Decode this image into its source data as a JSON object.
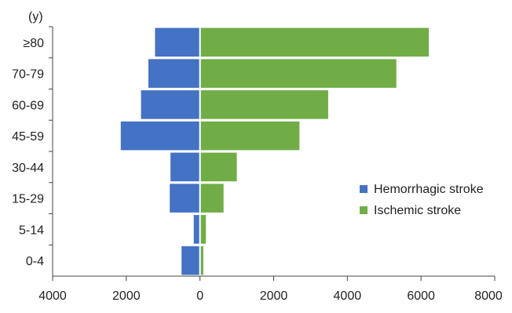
{
  "chart_data": {
    "type": "bar",
    "orientation": "horizontal",
    "layout": "population-pyramid",
    "y_axis_unit": "(y)",
    "categories": [
      "0-4",
      "5-14",
      "15-29",
      "30-44",
      "45-59",
      "60-69",
      "70-79",
      "≥80"
    ],
    "series": [
      {
        "name": "Hemorrhagic stroke",
        "color": "#4472C4",
        "side": "left",
        "values": [
          500,
          170,
          820,
          800,
          2150,
          1600,
          1400,
          1220
        ]
      },
      {
        "name": "Ischemic stroke",
        "color": "#70AD47",
        "side": "right",
        "values": [
          90,
          160,
          640,
          1000,
          2700,
          3480,
          5330,
          6210
        ]
      }
    ],
    "xlim": [
      -4000,
      8000
    ],
    "x_ticks": [
      -4000,
      -2000,
      0,
      2000,
      4000,
      6000,
      8000
    ],
    "x_tick_labels": [
      "4000",
      "2000",
      "0",
      "2000",
      "4000",
      "6000",
      "8000"
    ],
    "title": "",
    "xlabel": "",
    "ylabel": "",
    "grid": false,
    "legend_position": "right-middle"
  }
}
